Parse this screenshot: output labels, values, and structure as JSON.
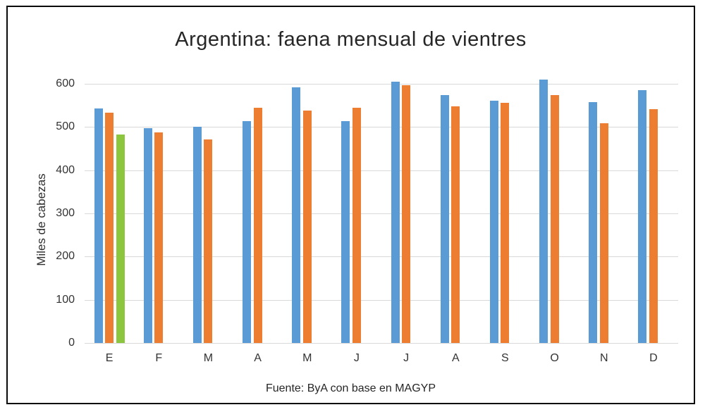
{
  "chart_data": {
    "type": "bar",
    "title": "Argentina: faena mensual de vientres",
    "ylabel": "Miles de cabezas",
    "xlabel": "",
    "footer": "Fuente: ByA con base en MAGYP",
    "categories": [
      "E",
      "F",
      "M",
      "A",
      "M",
      "J",
      "J",
      "A",
      "S",
      "O",
      "N",
      "D"
    ],
    "series": [
      {
        "name": "series-1-blue",
        "color": "#5B9BD5",
        "values": [
          542,
          497,
          501,
          513,
          592,
          514,
          605,
          573,
          561,
          610,
          558,
          585
        ]
      },
      {
        "name": "series-2-orange",
        "color": "#ED7D31",
        "values": [
          532,
          487,
          471,
          545,
          538,
          544,
          596,
          547,
          555,
          574,
          508,
          541
        ]
      },
      {
        "name": "series-3-green",
        "color": "#8CC63F",
        "values": [
          482,
          null,
          null,
          null,
          null,
          null,
          null,
          null,
          null,
          null,
          null,
          null
        ]
      }
    ],
    "ylim": [
      0,
      650
    ],
    "yticks": [
      0,
      100,
      200,
      300,
      400,
      500,
      600
    ],
    "grid": true,
    "legend_position": "none",
    "colors": {
      "grid": "#D9D9D9",
      "axis_text": "#333333",
      "title_text": "#262626",
      "frame_border": "#0A0A0A",
      "background": "#FFFFFF"
    }
  }
}
